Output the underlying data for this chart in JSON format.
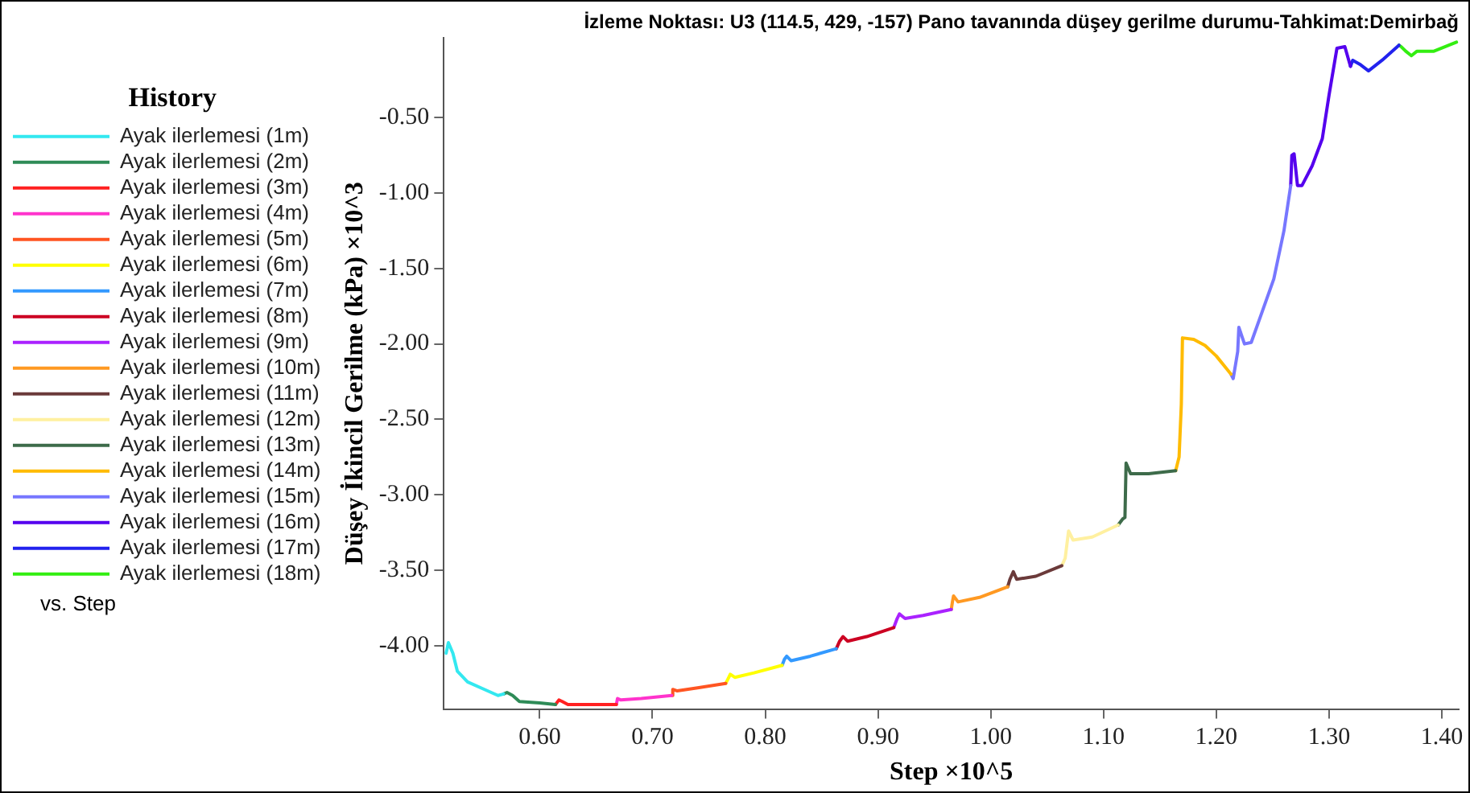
{
  "chart_data": {
    "type": "line",
    "title": "İzleme Noktası: U3 (114.5, 429, -157) Pano tavanında düşey gerilme durumu-Tahkimat:Demirbağ",
    "xlabel": "Step ×10^5",
    "ylabel": "Düşey İkincil Gerilme (kPa) ×10^3",
    "legend_title": "History",
    "legend": "left",
    "grid": false,
    "marker": "none",
    "line_style": "solid",
    "annotations": [
      "vs. Step"
    ],
    "xlim": [
      0.515,
      1.415
    ],
    "xticks": [
      {
        "value": 0.6,
        "label": "0.60"
      },
      {
        "value": 0.7,
        "label": "0.70"
      },
      {
        "value": 0.8,
        "label": "0.80"
      },
      {
        "value": 0.9,
        "label": "0.90"
      },
      {
        "value": 1.0,
        "label": "1.00"
      },
      {
        "value": 1.1,
        "label": "1.10"
      },
      {
        "value": 1.2,
        "label": "1.20"
      },
      {
        "value": 1.3,
        "label": "1.30"
      },
      {
        "value": 1.4,
        "label": "1.40"
      }
    ],
    "ylim": [
      -4.42,
      0.03
    ],
    "yticks": [
      {
        "value": -0.5,
        "label": "-0.50"
      },
      {
        "value": -1.0,
        "label": "-1.00"
      },
      {
        "value": -1.5,
        "label": "-1.50"
      },
      {
        "value": -2.0,
        "label": "-2.00"
      },
      {
        "value": -2.5,
        "label": "-2.50"
      },
      {
        "value": -3.0,
        "label": "-3.00"
      },
      {
        "value": -3.5,
        "label": "-3.50"
      },
      {
        "value": -4.0,
        "label": "-4.00"
      }
    ],
    "series": [
      {
        "name": "Ayak ilerlemesi (1m)",
        "color": "#33e8f0",
        "x": [
          0.517,
          0.519,
          0.523,
          0.527,
          0.536,
          0.551,
          0.563,
          0.568
        ],
        "values": [
          -4.05,
          -3.98,
          -4.05,
          -4.17,
          -4.24,
          -4.29,
          -4.33,
          -4.32
        ]
      },
      {
        "name": "Ayak ilerlemesi (2m)",
        "color": "#2e8b57",
        "x": [
          0.568,
          0.571,
          0.576,
          0.582,
          0.6,
          0.614
        ],
        "values": [
          -4.32,
          -4.31,
          -4.33,
          -4.37,
          -4.38,
          -4.39
        ]
      },
      {
        "name": "Ayak ilerlemesi (3m)",
        "color": "#ff2020",
        "x": [
          0.614,
          0.617,
          0.62,
          0.625,
          0.64,
          0.668
        ],
        "values": [
          -4.39,
          -4.36,
          -4.37,
          -4.39,
          -4.39,
          -4.39
        ]
      },
      {
        "name": "Ayak ilerlemesi (4m)",
        "color": "#ff33cc",
        "x": [
          0.668,
          0.669,
          0.672,
          0.69,
          0.717
        ],
        "values": [
          -4.39,
          -4.35,
          -4.36,
          -4.35,
          -4.33
        ]
      },
      {
        "name": "Ayak ilerlemesi (5m)",
        "color": "#ff5522",
        "x": [
          0.717,
          0.718,
          0.722,
          0.74,
          0.765
        ],
        "values": [
          -4.33,
          -4.29,
          -4.3,
          -4.28,
          -4.25
        ]
      },
      {
        "name": "Ayak ilerlemesi (6m)",
        "color": "#ffff00",
        "x": [
          0.765,
          0.767,
          0.769,
          0.773,
          0.79,
          0.815
        ],
        "values": [
          -4.25,
          -4.22,
          -4.19,
          -4.21,
          -4.18,
          -4.13
        ]
      },
      {
        "name": "Ayak ilerlemesi (7m)",
        "color": "#3399ff",
        "x": [
          0.815,
          0.817,
          0.819,
          0.823,
          0.84,
          0.863
        ],
        "values": [
          -4.13,
          -4.09,
          -4.07,
          -4.1,
          -4.07,
          -4.02
        ]
      },
      {
        "name": "Ayak ilerlemesi (8m)",
        "color": "#cc0022",
        "x": [
          0.863,
          0.866,
          0.869,
          0.873,
          0.89,
          0.914
        ],
        "values": [
          -4.02,
          -3.97,
          -3.94,
          -3.97,
          -3.94,
          -3.88
        ]
      },
      {
        "name": "Ayak ilerlemesi (9m)",
        "color": "#aa22ff",
        "x": [
          0.914,
          0.917,
          0.919,
          0.924,
          0.94,
          0.965
        ],
        "values": [
          -3.88,
          -3.82,
          -3.79,
          -3.82,
          -3.8,
          -3.76
        ]
      },
      {
        "name": "Ayak ilerlemesi (10m)",
        "color": "#ff9922",
        "x": [
          0.965,
          0.966,
          0.967,
          0.971,
          0.99,
          1.015
        ],
        "values": [
          -3.76,
          -3.71,
          -3.67,
          -3.71,
          -3.68,
          -3.61
        ]
      },
      {
        "name": "Ayak ilerlemesi (11m)",
        "color": "#6b3a3a",
        "x": [
          1.015,
          1.017,
          1.02,
          1.023,
          1.04,
          1.063
        ],
        "values": [
          -3.61,
          -3.56,
          -3.51,
          -3.56,
          -3.54,
          -3.47
        ]
      },
      {
        "name": "Ayak ilerlemesi (12m)",
        "color": "#fff0a0",
        "x": [
          1.063,
          1.066,
          1.069,
          1.073,
          1.09,
          1.113
        ],
        "values": [
          -3.47,
          -3.42,
          -3.24,
          -3.3,
          -3.28,
          -3.2
        ]
      },
      {
        "name": "Ayak ilerlemesi (13m)",
        "color": "#3d6b4a",
        "x": [
          1.113,
          1.117,
          1.119,
          1.12,
          1.124,
          1.14,
          1.164
        ],
        "values": [
          -3.2,
          -3.16,
          -3.15,
          -2.79,
          -2.86,
          -2.86,
          -2.84
        ]
      },
      {
        "name": "Ayak ilerlemesi (14m)",
        "color": "#ffbb00",
        "x": [
          1.164,
          1.167,
          1.169,
          1.17,
          1.18,
          1.19,
          1.2,
          1.213
        ],
        "values": [
          -2.84,
          -2.75,
          -2.4,
          -1.96,
          -1.97,
          -2.01,
          -2.08,
          -2.2
        ]
      },
      {
        "name": "Ayak ilerlemesi (15m)",
        "color": "#7777ff",
        "x": [
          1.213,
          1.215,
          1.219,
          1.22,
          1.225,
          1.231,
          1.241,
          1.251,
          1.26,
          1.266
        ],
        "values": [
          -2.2,
          -2.23,
          -2.05,
          -1.89,
          -2.0,
          -1.99,
          -1.78,
          -1.57,
          -1.25,
          -0.95
        ]
      },
      {
        "name": "Ayak ilerlemesi (16m)",
        "color": "#5500ee",
        "x": [
          1.266,
          1.267,
          1.269,
          1.272,
          1.276,
          1.285,
          1.294,
          1.3,
          1.307,
          1.314,
          1.319
        ],
        "values": [
          -0.95,
          -0.75,
          -0.74,
          -0.95,
          -0.95,
          -0.82,
          -0.64,
          -0.35,
          -0.04,
          -0.03,
          -0.16
        ]
      },
      {
        "name": "Ayak ilerlemesi (17m)",
        "color": "#2222ee",
        "x": [
          1.319,
          1.321,
          1.328,
          1.335,
          1.347,
          1.362
        ],
        "values": [
          -0.16,
          -0.12,
          -0.15,
          -0.19,
          -0.12,
          -0.02
        ]
      },
      {
        "name": "Ayak ilerlemesi (18m)",
        "color": "#33ee11",
        "x": [
          1.362,
          1.364,
          1.368,
          1.373,
          1.378,
          1.393,
          1.413
        ],
        "values": [
          -0.02,
          -0.03,
          -0.06,
          -0.09,
          -0.06,
          -0.06,
          0.0
        ]
      }
    ]
  }
}
